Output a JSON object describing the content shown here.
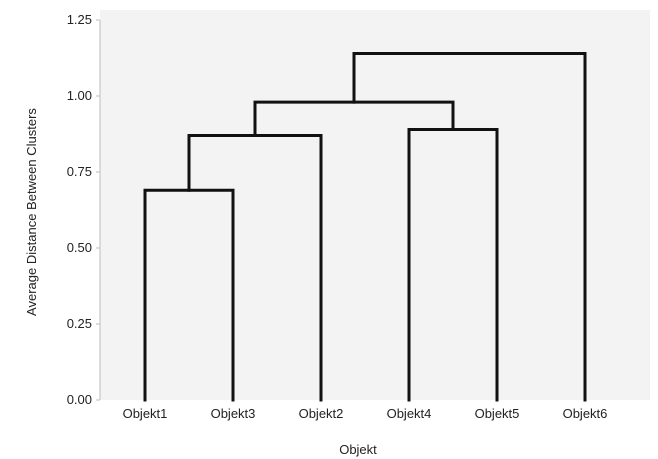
{
  "chart_data": {
    "type": "dendrogram",
    "title": "",
    "xlabel": "Objekt",
    "ylabel": "Average Distance Between Clusters",
    "ylim": [
      0,
      1.25
    ],
    "y_ticks": [
      "0.00",
      "0.25",
      "0.50",
      "0.75",
      "1.00",
      "1.25"
    ],
    "y_tick_values": [
      0,
      0.25,
      0.5,
      0.75,
      1.0,
      1.25
    ],
    "leaves": [
      "Objekt1",
      "Objekt3",
      "Objekt2",
      "Objekt4",
      "Objekt5",
      "Objekt6"
    ],
    "merges": [
      {
        "left": "Objekt1",
        "right": "Objekt3",
        "height": 0.69
      },
      {
        "left": "Objekt4",
        "right": "Objekt5",
        "height": 0.89
      },
      {
        "left": "(Objekt1,Objekt3)",
        "right": "Objekt2",
        "height": 0.87
      },
      {
        "left": "(Objekt1,Objekt3,Objekt2)",
        "right": "(Objekt4,Objekt5)",
        "height": 0.98
      },
      {
        "left": "(Objekt1,Objekt3,Objekt2,Objekt4,Objekt5)",
        "right": "Objekt6",
        "height": 1.14
      }
    ],
    "grid": false,
    "colors": {
      "background": "#f3f3f3",
      "line": "#111111",
      "axis": "#bdbdbd"
    }
  }
}
